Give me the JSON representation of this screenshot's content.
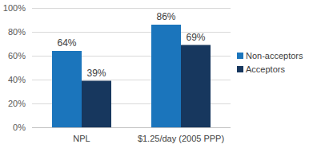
{
  "chart_data": {
    "type": "bar",
    "categories": [
      "NPL",
      "$1.25/day (2005 PPP)"
    ],
    "series": [
      {
        "name": "Non-acceptors",
        "color": "#1b75bc",
        "values": [
          64,
          86
        ],
        "value_labels": [
          "64%",
          "86%"
        ]
      },
      {
        "name": "Acceptors",
        "color": "#17375e",
        "values": [
          39,
          69
        ],
        "value_labels": [
          "39%",
          "69%"
        ]
      }
    ],
    "ylim": [
      0,
      100
    ],
    "yticks": [
      {
        "value": 0,
        "label": "0%"
      },
      {
        "value": 20,
        "label": "20%"
      },
      {
        "value": 40,
        "label": "40%"
      },
      {
        "value": 60,
        "label": "60%"
      },
      {
        "value": 80,
        "label": "80%"
      },
      {
        "value": 100,
        "label": "100%"
      }
    ],
    "grid": true,
    "data_labels": true,
    "legend": "right"
  }
}
